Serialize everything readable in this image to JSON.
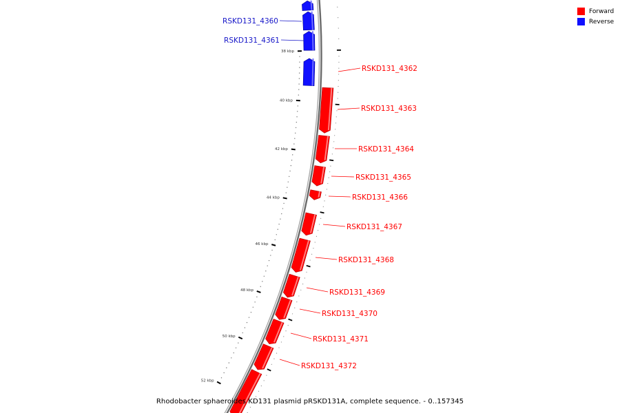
{
  "legend": {
    "forward": {
      "label": "Forward",
      "color": "#ff0000"
    },
    "reverse": {
      "label": "Reverse",
      "color": "#1010ff"
    }
  },
  "caption": "Rhodobacter sphaeroides KD131 plasmid pRSKD131A, complete sequence. - 0..157345",
  "genes": [
    {
      "label": "RSKD131_4360",
      "strand": "reverse"
    },
    {
      "label": "RSKD131_4361",
      "strand": "reverse"
    },
    {
      "label": "RSKD131_4362",
      "strand": "forward"
    },
    {
      "label": "RSKD131_4363",
      "strand": "forward"
    },
    {
      "label": "RSKD131_4364",
      "strand": "forward"
    },
    {
      "label": "RSKD131_4365",
      "strand": "forward"
    },
    {
      "label": "RSKD131_4366",
      "strand": "forward"
    },
    {
      "label": "RSKD131_4367",
      "strand": "forward"
    },
    {
      "label": "RSKD131_4368",
      "strand": "forward"
    },
    {
      "label": "RSKD131_4369",
      "strand": "forward"
    },
    {
      "label": "RSKD131_4370",
      "strand": "forward"
    },
    {
      "label": "RSKD131_4371",
      "strand": "forward"
    },
    {
      "label": "RSKD131_4372",
      "strand": "forward"
    }
  ],
  "scale_labels": [
    "38 kbp",
    "40 kbp",
    "42 kbp",
    "44 kbp",
    "46 kbp",
    "48 kbp",
    "50 kbp",
    "52 kbp"
  ]
}
